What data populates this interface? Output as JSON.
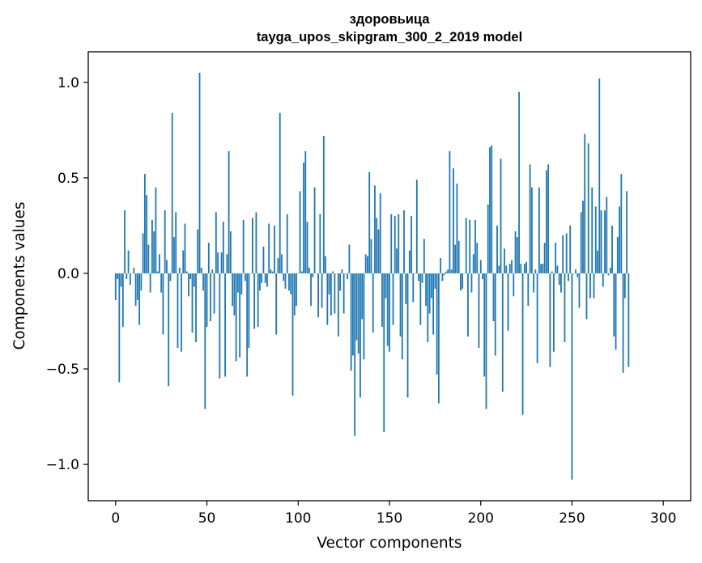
{
  "chart_data": {
    "type": "bar",
    "title_line1": "здоровьица",
    "title_line2": "tayga_upos_skipgram_300_2_2019 model",
    "xlabel": "Vector components",
    "ylabel": "Components values",
    "xlim": [
      -15,
      315
    ],
    "ylim": [
      -1.19,
      1.16
    ],
    "xticks": [
      0,
      50,
      100,
      150,
      200,
      250,
      300
    ],
    "xtick_labels": [
      "0",
      "50",
      "100",
      "150",
      "200",
      "250",
      "300"
    ],
    "yticks": [
      -1.0,
      -0.5,
      0.0,
      0.5,
      1.0
    ],
    "ytick_labels": [
      "−1.0",
      "−0.5",
      "0.0",
      "0.5",
      "1.0"
    ],
    "color": "#1f77b4",
    "values": [
      -0.14,
      -0.03,
      -0.57,
      -0.07,
      -0.28,
      0.33,
      -0.03,
      0.12,
      -0.06,
      0.0,
      0.03,
      -0.17,
      -0.14,
      -0.27,
      -0.09,
      0.21,
      0.52,
      0.41,
      0.15,
      -0.1,
      0.28,
      0.22,
      0.45,
      0.01,
      0.1,
      -0.1,
      -0.32,
      0.33,
      0.07,
      -0.59,
      -0.04,
      0.84,
      0.19,
      0.32,
      -0.39,
      0.03,
      -0.41,
      0.12,
      0.26,
      0.01,
      -0.12,
      -0.03,
      -0.31,
      -0.07,
      -0.36,
      0.23,
      1.05,
      0.03,
      -0.09,
      -0.71,
      -0.28,
      0.16,
      -0.25,
      0.02,
      -0.21,
      0.32,
      0.11,
      -0.55,
      0.11,
      0.27,
      -0.54,
      0.1,
      0.64,
      0.22,
      -0.17,
      -0.22,
      -0.46,
      -0.1,
      -0.44,
      -0.11,
      0.28,
      -0.04,
      -0.54,
      -0.39,
      0.0,
      0.29,
      -0.29,
      0.32,
      -0.28,
      -0.09,
      -0.05,
      0.14,
      -0.05,
      -0.07,
      0.26,
      0.02,
      0.01,
      0.25,
      -0.32,
      0.08,
      0.84,
      0.1,
      -0.04,
      -0.08,
      0.31,
      -0.09,
      -0.11,
      -0.64,
      -0.22,
      -0.17,
      0.0,
      0.43,
      0.01,
      0.58,
      0.64,
      0.27,
      0.03,
      -0.17,
      -0.02,
      0.45,
      0.0,
      -0.23,
      0.31,
      -0.18,
      0.72,
      0.09,
      -0.27,
      -0.11,
      -0.22,
      0.01,
      -0.21,
      0.0,
      -0.33,
      -0.09,
      0.02,
      -0.21,
      0.0,
      -0.03,
      0.15,
      -0.51,
      -0.43,
      -0.85,
      -0.35,
      -0.42,
      -0.65,
      -0.24,
      -0.45,
      0.1,
      0.09,
      0.53,
      0.18,
      -0.31,
      0.46,
      0.29,
      0.23,
      0.42,
      -0.28,
      -0.83,
      -0.13,
      -0.38,
      -0.41,
      0.31,
      -0.27,
      0.3,
      0.13,
      0.31,
      -0.33,
      -0.45,
      0.33,
      -0.16,
      -0.65,
      0.12,
      0.3,
      -0.15,
      0.0,
      0.49,
      -0.04,
      -0.27,
      -0.05,
      0.18,
      -0.17,
      -0.36,
      -0.21,
      -0.13,
      -0.32,
      -0.08,
      -0.53,
      -0.68,
      0.08,
      -0.04,
      -0.01,
      0.01,
      0.02,
      0.64,
      0.02,
      0.55,
      0.15,
      0.47,
      0.17,
      -0.09,
      -0.08,
      0.0,
      0.29,
      -0.33,
      0.28,
      -0.1,
      0.1,
      0.28,
      0.16,
      -0.39,
      0.07,
      -0.03,
      -0.54,
      -0.71,
      0.36,
      0.66,
      0.67,
      -0.25,
      -0.43,
      0.25,
      0.04,
      0.6,
      -0.62,
      0.13,
      0.04,
      -0.3,
      0.05,
      0.07,
      -0.12,
      0.22,
      0.19,
      0.95,
      0.05,
      -0.74,
      0.05,
      0.06,
      -0.17,
      0.57,
      0.45,
      -0.1,
      0.02,
      -0.47,
      0.45,
      0.05,
      0.05,
      0.16,
      0.54,
      0.57,
      -0.49,
      0.01,
      -0.41,
      0.16,
      0.04,
      -0.06,
      -0.1,
      0.2,
      -0.36,
      0.21,
      -0.04,
      0.25,
      -1.08,
      0.0,
      0.02,
      -0.02,
      -0.18,
      0.32,
      0.38,
      0.73,
      -0.24,
      0.68,
      -0.13,
      0.45,
      -0.13,
      0.35,
      0.12,
      1.02,
      0.33,
      -0.07,
      0.33,
      0.4,
      -0.01,
      0.03,
      0.25,
      -0.33,
      -0.4,
      0.19,
      0.35,
      0.52,
      -0.52,
      -0.13,
      0.43,
      -0.49
    ]
  }
}
